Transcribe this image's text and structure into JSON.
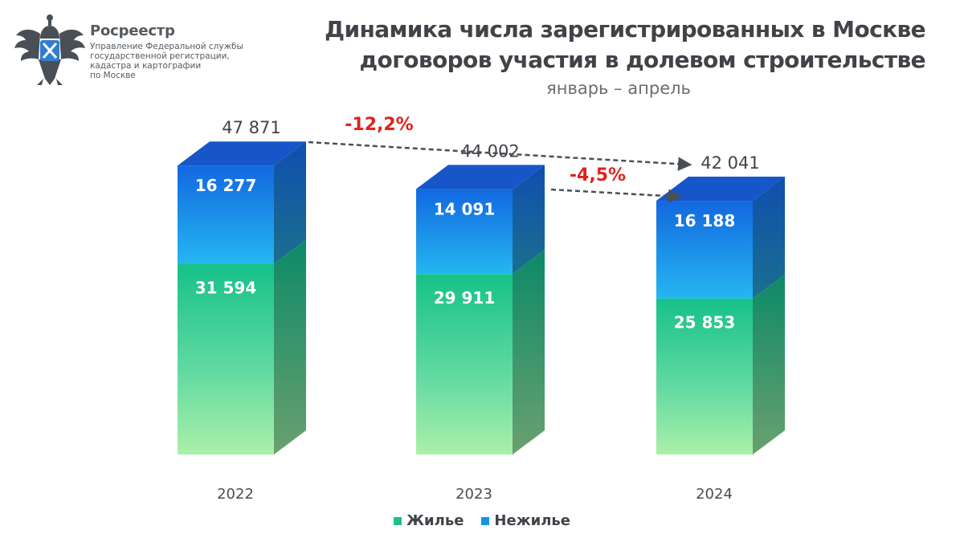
{
  "header": {
    "org_name": "Росреестр",
    "org_lines": [
      "Управление Федеральной службы",
      "государственной регистрации,",
      "кадастра и картографии",
      "по Москве"
    ]
  },
  "chart_data": {
    "type": "bar",
    "stacked": true,
    "title_lines": [
      "Динамика числа зарегистрированных в Москве",
      "договоров участия в долевом строительстве"
    ],
    "subtitle": "январь – апрель",
    "categories": [
      "2022",
      "2023",
      "2024"
    ],
    "series": [
      {
        "name": "Жилье",
        "values": [
          31594,
          29911,
          25853
        ],
        "labels": [
          "31 594",
          "29 911",
          "25 853"
        ],
        "color": "#1fbf86"
      },
      {
        "name": "Нежилье",
        "values": [
          16277,
          14091,
          16188
        ],
        "labels": [
          "16 277",
          "14 091",
          "16 188"
        ],
        "color": "#1591ea"
      }
    ],
    "totals": [
      47871,
      44002,
      42041
    ],
    "total_labels": [
      "47 871",
      "44 002",
      "42 041"
    ],
    "changes": [
      {
        "from": "2022",
        "to": "2024",
        "label": "-12,2%"
      },
      {
        "from": "2023",
        "to": "2024",
        "label": "-4,5%"
      }
    ],
    "change_color": "#e0231c",
    "grid": false,
    "legend_position": "bottom"
  }
}
